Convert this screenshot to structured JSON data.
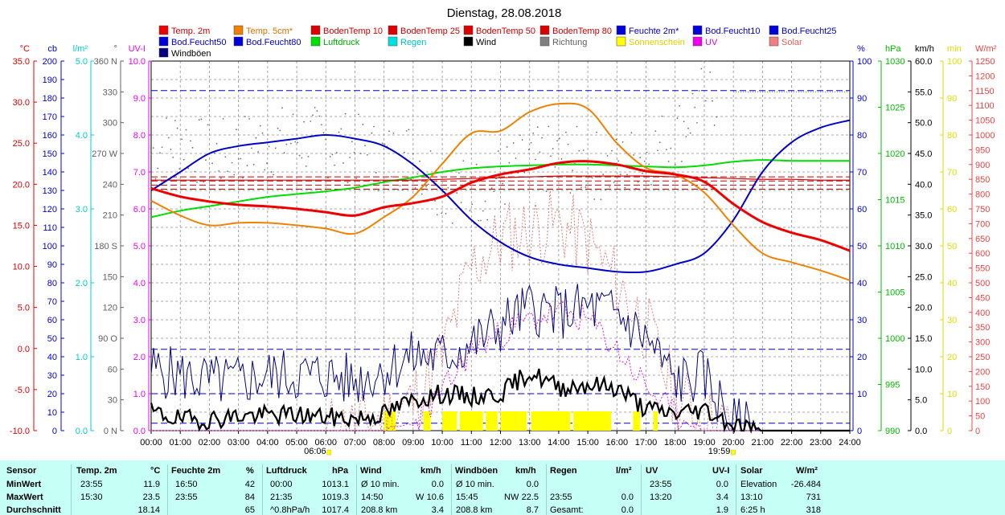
{
  "title": "Dienstag, 28.08.2018",
  "legend": [
    {
      "label": "Temp. 2m",
      "color": "#ee0000"
    },
    {
      "label": "Temp. 5cm*",
      "color": "#f08000"
    },
    {
      "label": "BodenTemp 10",
      "color": "#dd0000"
    },
    {
      "label": "BodenTemp 25",
      "color": "#dd0000"
    },
    {
      "label": "BodenTemp 50",
      "color": "#dd0000"
    },
    {
      "label": "BodenTemp 80",
      "color": "#dd0000"
    },
    {
      "label": "Feuchte 2m*",
      "color": "#0000dd"
    },
    {
      "label": "Bod.Feucht10",
      "color": "#0000dd"
    },
    {
      "label": "Bod.Feucht25",
      "color": "#0000dd"
    },
    {
      "label": "Bod.Feucht50",
      "color": "#0000dd"
    },
    {
      "label": "Bod.Feucht80",
      "color": "#0000dd"
    },
    {
      "label": "Luftdruck",
      "color": "#00dd00"
    },
    {
      "label": "Regen",
      "color": "#00e0e0"
    },
    {
      "label": "Wind",
      "color": "#000000"
    },
    {
      "label": "Richtung",
      "color": "#808080"
    },
    {
      "label": "Sonnenschein",
      "color": "#ffff00"
    },
    {
      "label": "UV",
      "color": "#ee00ee"
    },
    {
      "label": "Solar",
      "color": "#f08080"
    },
    {
      "label": "Windböen",
      "color": "#000080"
    }
  ],
  "axes": {
    "temp": {
      "unit": "°C",
      "color": "#dd0000",
      "ticks": [
        "35.0",
        "30.0",
        "25.0",
        "20.0",
        "15.0",
        "10.0",
        "5.0",
        "0.0",
        "-5.0",
        "-10.0"
      ]
    },
    "cb": {
      "unit": "cb",
      "color": "#0000dd",
      "ticks": [
        "200",
        "190",
        "180",
        "170",
        "160",
        "150",
        "140",
        "130",
        "120",
        "110",
        "100",
        "90",
        "80",
        "70",
        "60",
        "50",
        "40",
        "30",
        "20",
        "10",
        "0"
      ]
    },
    "rain": {
      "unit": "l/m²",
      "color": "#00cccc",
      "ticks": [
        "5.0",
        "4.0",
        "3.0",
        "2.0",
        "1.0",
        "0.0"
      ]
    },
    "dir": {
      "unit": "°",
      "color": "#606060",
      "ticks": [
        "360 N",
        "330",
        "300",
        "270 W",
        "240",
        "210",
        "180 S",
        "150",
        "120",
        "90 O",
        "60",
        "30",
        "0 N"
      ]
    },
    "uv": {
      "unit": "UV-I",
      "color": "#ee00ee",
      "ticks": [
        "10.0",
        "9.0",
        "8.0",
        "7.0",
        "6.0",
        "5.0",
        "4.0",
        "3.0",
        "2.0",
        "1.0",
        "0.0"
      ]
    },
    "hum": {
      "unit": "%",
      "color": "#0000dd",
      "ticks": [
        "100",
        "90",
        "80",
        "70",
        "60",
        "50",
        "40",
        "30",
        "20",
        "10",
        "0"
      ]
    },
    "hpa": {
      "unit": "hPa",
      "color": "#00bb00",
      "ticks": [
        "1030",
        "1025",
        "1020",
        "1015",
        "1010",
        "1005",
        "1000",
        "995",
        "990"
      ]
    },
    "kmh": {
      "unit": "km/h",
      "color": "#000000",
      "ticks": [
        "60.0",
        "55.0",
        "50.0",
        "45.0",
        "40.0",
        "35.0",
        "30.0",
        "25.0",
        "20.0",
        "15.0",
        "10.0",
        "5.0",
        "0.0"
      ]
    },
    "min": {
      "unit": "min",
      "color": "#dddd00",
      "ticks": [
        "100",
        "90",
        "80",
        "70",
        "60",
        "50",
        "40",
        "30",
        "20",
        "10",
        "0"
      ]
    },
    "solar": {
      "unit": "W/m²",
      "color": "#ee4444",
      "ticks": [
        "1250",
        "1200",
        "1150",
        "1100",
        "1050",
        "1000",
        "950",
        "900",
        "850",
        "800",
        "750",
        "700",
        "650",
        "600",
        "550",
        "500",
        "450",
        "400",
        "350",
        "300",
        "250",
        "200",
        "150",
        "100",
        "50",
        "0"
      ]
    },
    "x": {
      "ticks": [
        "00:00",
        "01:00",
        "02:00",
        "03:00",
        "04:00",
        "05:00",
        "06:00",
        "07:00",
        "08:00",
        "09:00",
        "10:00",
        "11:00",
        "12:00",
        "13:00",
        "14:00",
        "15:00",
        "16:00",
        "17:00",
        "18:00",
        "19:00",
        "20:00",
        "21:00",
        "22:00",
        "23:00",
        "24:00"
      ]
    }
  },
  "sunrise": "06:06",
  "sunset": "19:59",
  "chart_data": {
    "type": "line",
    "title": "Dienstag, 28.08.2018",
    "x_hours": [
      0,
      1,
      2,
      3,
      4,
      5,
      6,
      7,
      8,
      9,
      10,
      11,
      12,
      13,
      14,
      15,
      16,
      17,
      18,
      19,
      20,
      21,
      22,
      23,
      24
    ],
    "series": [
      {
        "name": "Temp. 2m",
        "axis": "temp",
        "values": [
          19.5,
          18.5,
          17.9,
          17.5,
          17.3,
          17.0,
          16.6,
          16.2,
          17.2,
          17.7,
          18.5,
          20.2,
          21.2,
          21.8,
          22.6,
          22.8,
          22.4,
          21.6,
          21.2,
          20.3,
          17.6,
          15.4,
          14.1,
          13.2,
          11.9
        ]
      },
      {
        "name": "Temp. 5cm*",
        "axis": "temp",
        "values": [
          18.0,
          16.2,
          15.0,
          15.3,
          15.3,
          15.0,
          14.6,
          14.0,
          16.0,
          18.5,
          22.5,
          26.2,
          26.5,
          28.8,
          29.8,
          29.2,
          25.0,
          22.0,
          21.2,
          19.0,
          15.0,
          11.6,
          10.5,
          9.5,
          8.3
        ]
      },
      {
        "name": "BodenTemp 10",
        "axis": "temp",
        "values": [
          20.5,
          20.5,
          20.5,
          20.5,
          20.5,
          20.5,
          20.5,
          20.5,
          20.5,
          20.5,
          20.6,
          20.7,
          20.8,
          20.9,
          21.0,
          21.0,
          21.0,
          21.0,
          20.9,
          20.8,
          20.7,
          20.6,
          20.6,
          20.5,
          20.5
        ]
      },
      {
        "name": "Feuchte 2m*",
        "axis": "hum",
        "values": [
          65,
          70,
          75,
          77,
          78,
          79,
          80,
          79,
          77,
          72,
          65,
          57,
          51,
          47,
          45,
          44,
          43,
          43,
          45,
          48,
          57,
          70,
          78,
          82,
          84
        ]
      },
      {
        "name": "Luftdruck",
        "axis": "hpa",
        "values": [
          1013.1,
          1013.8,
          1014.3,
          1014.8,
          1015.3,
          1015.6,
          1015.9,
          1016.3,
          1016.9,
          1017.4,
          1018.0,
          1018.4,
          1018.6,
          1018.7,
          1018.8,
          1018.8,
          1018.7,
          1018.6,
          1018.5,
          1018.7,
          1019.1,
          1019.3,
          1019.2,
          1019.2,
          1019.2
        ]
      },
      {
        "name": "Wind",
        "axis": "kmh",
        "values": [
          3.0,
          1.8,
          1.8,
          2.4,
          2.5,
          2.6,
          2.2,
          2.0,
          2.7,
          5.0,
          6.0,
          5.5,
          6.0,
          9.5,
          7.0,
          7.5,
          7.0,
          3.5,
          2.8,
          3.5,
          1.0,
          0.0,
          0.0,
          0.0,
          0.0
        ]
      },
      {
        "name": "Windböen",
        "axis": "kmh",
        "values": [
          10,
          9,
          8,
          8,
          9,
          9,
          9,
          8,
          10,
          12,
          12,
          14,
          17,
          20,
          19,
          20,
          19,
          15,
          8,
          9,
          1,
          0,
          0,
          0,
          0
        ]
      },
      {
        "name": "UV",
        "axis": "uv",
        "values": [
          0,
          0,
          0,
          0,
          0,
          0,
          0,
          0,
          0,
          0.2,
          1.0,
          2.2,
          2.6,
          3.0,
          3.2,
          3.0,
          2.2,
          1.2,
          0.4,
          0,
          0,
          0,
          0,
          0,
          0
        ]
      },
      {
        "name": "Solar",
        "axis": "solar",
        "values": [
          0,
          0,
          0,
          0,
          0,
          0,
          0,
          10,
          40,
          100,
          250,
          550,
          650,
          680,
          700,
          640,
          500,
          350,
          120,
          30,
          0,
          0,
          0,
          0,
          0
        ]
      },
      {
        "name": "Richtung",
        "axis": "dir",
        "values": [
          270,
          285,
          265,
          275,
          280,
          285,
          280,
          275,
          265,
          270,
          240,
          230,
          245,
          260,
          265,
          260,
          255,
          270,
          285,
          330,
          320,
          330,
          330,
          330,
          330
        ]
      }
    ]
  },
  "stats": {
    "headers": {
      "sensor": "Sensor",
      "temp": "Temp. 2m",
      "temp_u": "°C",
      "hum": "Feuchte 2m",
      "hum_u": "%",
      "press": "Luftdruck",
      "press_u": "hPa",
      "wind": "Wind",
      "wind_u": "km/h",
      "gust": "Windböen",
      "gust_u": "km/h",
      "rain": "Regen",
      "rain_u": "l/m²",
      "uv": "UV",
      "uv_u": "UV-I",
      "solar": "Solar",
      "solar_u": "W/m²"
    },
    "rows": [
      {
        "label": "MinWert",
        "temp_t": "23:55",
        "temp_v": "11.9",
        "hum_t": "16:50",
        "hum_v": "42",
        "press_t": "00:00",
        "press_v": "1013.1",
        "wind_t": "Ø 10 min.",
        "wind_d": "",
        "wind_v": "0.0",
        "gust_t": "Ø 10 min.",
        "gust_d": "",
        "gust_v": "0.0",
        "rain_t": "",
        "rain_v": "",
        "uv_t": "23:55",
        "uv_v": "0.0",
        "solar_t": "Elevation",
        "solar_v": "-26.484"
      },
      {
        "label": "MaxWert",
        "temp_t": "15:30",
        "temp_v": "23.5",
        "hum_t": "23:55",
        "hum_v": "84",
        "press_t": "21:35",
        "press_v": "1019.3",
        "wind_t": "14:50",
        "wind_d": "W",
        "wind_v": "10.6",
        "gust_t": "15:45",
        "gust_d": "NW",
        "gust_v": "22.5",
        "rain_t": "23:55",
        "rain_v": "0.0",
        "uv_t": "13:20",
        "uv_v": "3.4",
        "solar_t": "13:10",
        "solar_v": "731"
      },
      {
        "label": "Durchschnitt",
        "temp_t": "",
        "temp_v": "18.14",
        "hum_t": "",
        "hum_v": "65",
        "press_t": "^0.8hPa/h",
        "press_v": "1017.4",
        "wind_t": "208.8 km",
        "wind_d": "",
        "wind_v": "3.4",
        "gust_t": "208.8 km",
        "gust_d": "",
        "gust_v": "8.7",
        "rain_t": "Gesamt:",
        "rain_v": "0.0",
        "uv_t": "",
        "uv_v": "1.9",
        "solar_t": "6:25 h",
        "solar_v": "318"
      }
    ]
  }
}
